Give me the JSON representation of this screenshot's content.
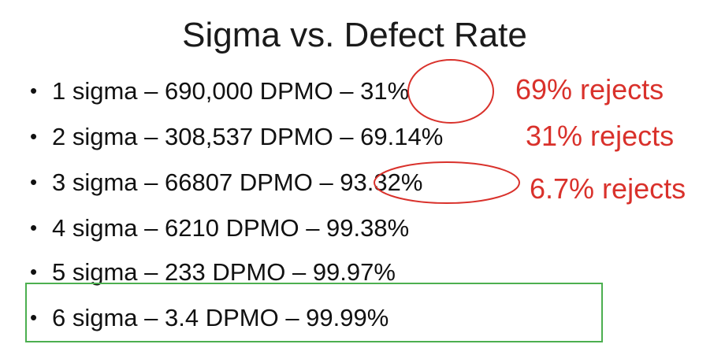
{
  "title": "Sigma vs. Defect Rate",
  "bullet_symbol": "•",
  "bullets": [
    {
      "text": "1 sigma – 690,000 DPMO – 31%"
    },
    {
      "text": "2 sigma – 308,537 DPMO – 69.14%"
    },
    {
      "text": "3 sigma – 66807 DPMO – 93.32%"
    },
    {
      "text": "4 sigma – 6210 DPMO – 99.38%"
    },
    {
      "text": "5 sigma – 233 DPMO – 99.97%"
    },
    {
      "text": "6 sigma – 3.4 DPMO – 99.99%"
    }
  ],
  "annotations": [
    {
      "text": "69% rejects"
    },
    {
      "text": "31% rejects"
    },
    {
      "text": "6.7% rejects"
    }
  ],
  "colors": {
    "annotation": "#d9312b",
    "highlight_box": "#4caf50",
    "text": "#111111"
  }
}
